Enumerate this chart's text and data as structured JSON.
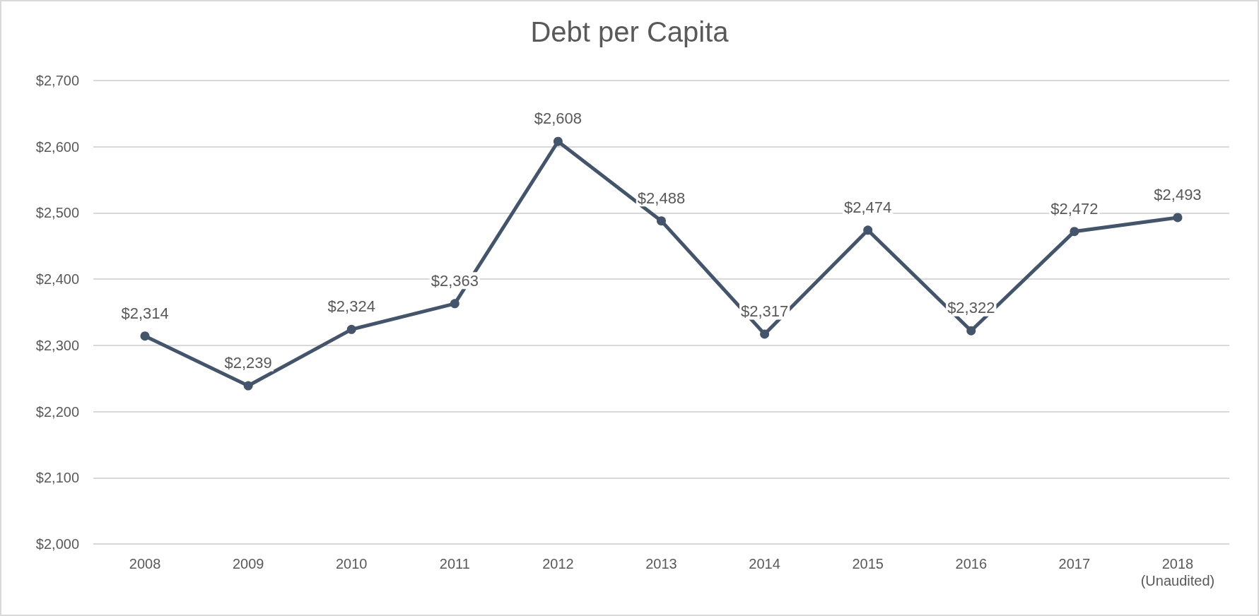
{
  "chart_data": {
    "type": "line",
    "title": "Debt per Capita",
    "categories": [
      "2008",
      "2009",
      "2010",
      "2011",
      "2012",
      "2013",
      "2014",
      "2015",
      "2016",
      "2017",
      "2018\n(Unaudited)"
    ],
    "series": [
      {
        "color": "#44546a",
        "values": [
          2314,
          2239,
          2324,
          2363,
          2608,
          2488,
          2317,
          2474,
          2322,
          2472,
          2493
        ],
        "value_labels": [
          "$2,314",
          "$2,239",
          "$2,324",
          "$2,363",
          "$2,608",
          "$2,488",
          "$2,317",
          "$2,474",
          "$2,322",
          "$2,472",
          "$2,493"
        ]
      }
    ],
    "ylim": [
      2000,
      2700
    ],
    "yticks": [
      {
        "value": 2000,
        "label": "$2,000"
      },
      {
        "value": 2100,
        "label": "$2,100"
      },
      {
        "value": 2200,
        "label": "$2,200"
      },
      {
        "value": 2300,
        "label": "$2,300"
      },
      {
        "value": 2400,
        "label": "$2,400"
      },
      {
        "value": 2500,
        "label": "$2,500"
      },
      {
        "value": 2600,
        "label": "$2,600"
      },
      {
        "value": 2700,
        "label": "$2,700"
      }
    ],
    "grid": "y",
    "marker": "circle",
    "line_style": "solid"
  }
}
